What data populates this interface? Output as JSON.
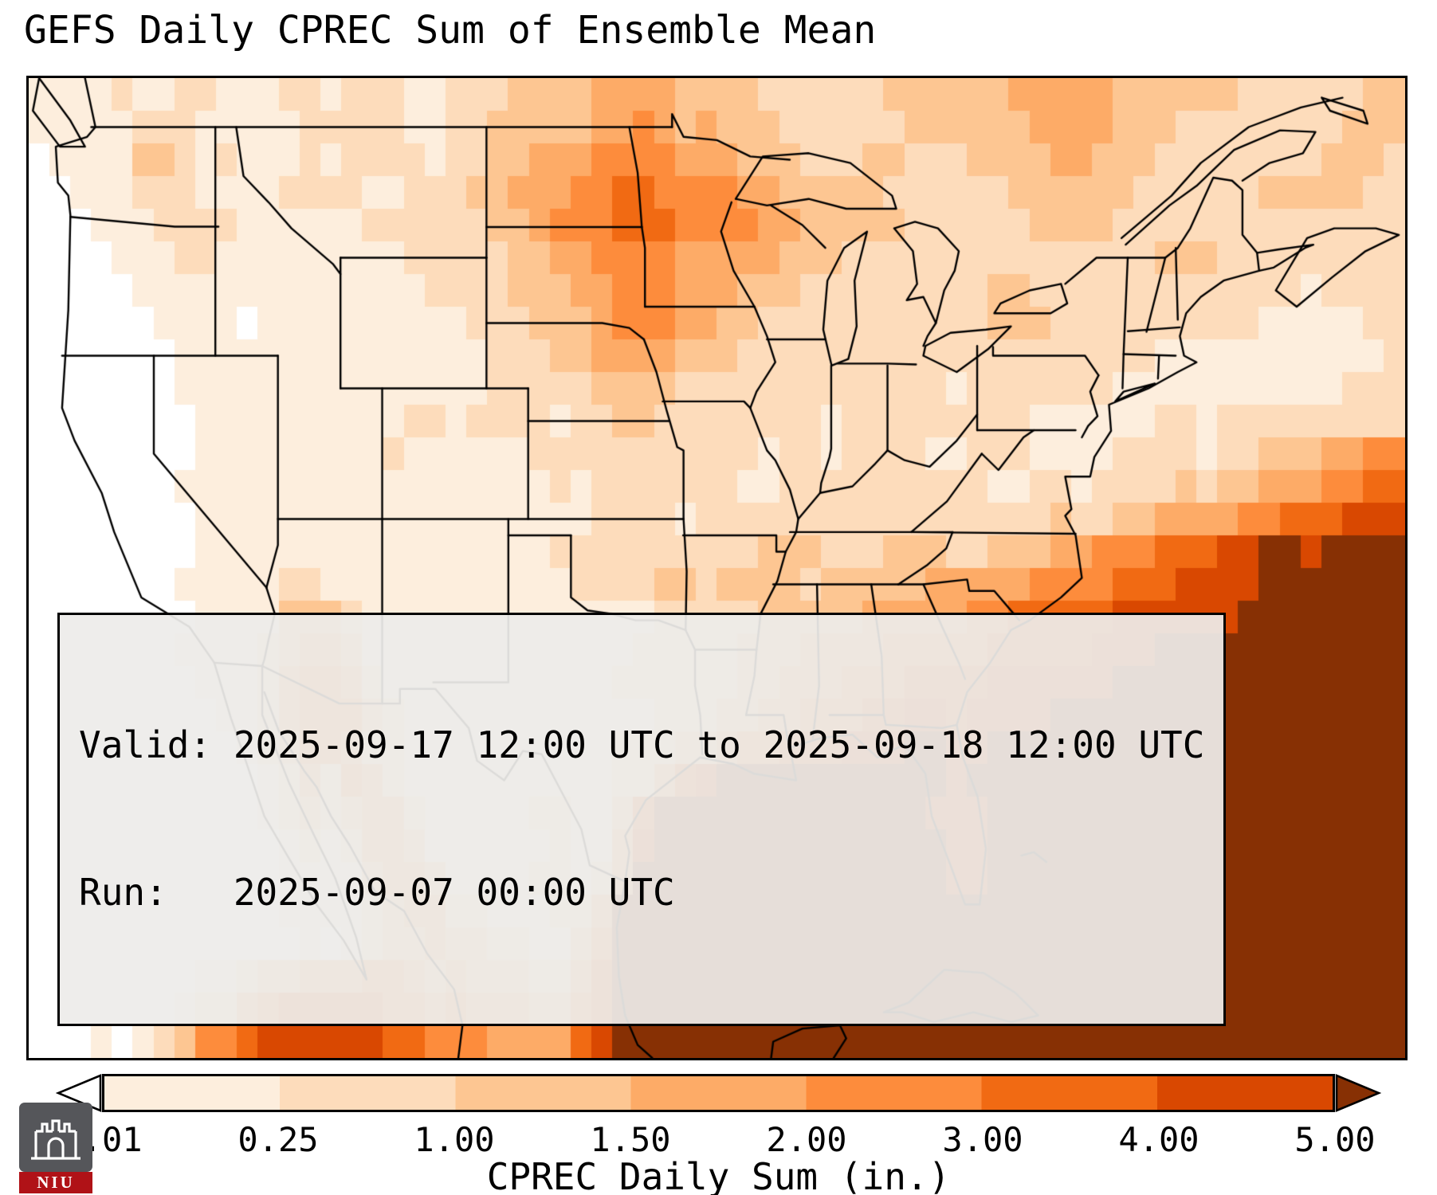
{
  "title": "GEFS Daily CPREC Sum of Ensemble Mean",
  "annotation_box": {
    "line1": "Valid: 2025-09-17 12:00 UTC to 2025-09-18 12:00 UTC",
    "line2": "Run:   2025-09-07 00:00 UTC"
  },
  "colorbar": {
    "label": "CPREC Daily Sum (in.)",
    "ticks": [
      "0.01",
      "0.25",
      "1.00",
      "1.50",
      "2.00",
      "3.00",
      "4.00",
      "5.00"
    ],
    "segment_colors": [
      "#fdeedd",
      "#fddcbb",
      "#fdc692",
      "#fdab67",
      "#fd8c3c",
      "#f16a13",
      "#d94801"
    ],
    "under_color": "#ffffff",
    "over_color": "#873004"
  },
  "logo": {
    "text": "NIU",
    "bar_color": "#b01217",
    "bg_color": "#55565a"
  },
  "chart_data": {
    "type": "heatmap",
    "title": "GEFS Daily CPREC Sum of Ensemble Mean",
    "colorbar_label": "CPREC Daily Sum (in.)",
    "valid_period": "2025-09-17 12:00 UTC to 2025-09-18 12:00 UTC",
    "run_time": "2025-09-07 00:00 UTC",
    "level_boundaries_in": [
      0.01,
      0.25,
      1.0,
      1.5,
      2.0,
      3.0,
      4.0,
      5.0
    ],
    "level_colors": [
      "#ffffff",
      "#fdeedd",
      "#fddcbb",
      "#fdc692",
      "#fdab67",
      "#fd8c3c",
      "#f16a13",
      "#d94801",
      "#873004"
    ],
    "grid_encoding": "each digit 0-8 indexes level_colors; 66 columns span lon_range west to east, 30 rows span lat top to bottom",
    "lon_range": [
      -126,
      -60
    ],
    "lat_range": [
      20.5,
      50.5
    ],
    "grid": [
      [
        "1111",
        "21122",
        "11122",
        "122211",
        "222333",
        "344443",
        "333222",
        "222333",
        "333444",
        "443333",
        "33222",
        "22233"
      ],
      [
        "1111",
        "12221",
        "11112",
        "222211",
        "223333",
        "344543",
        "433322",
        "222233",
        "333344",
        "443332",
        "22222",
        "22333"
      ],
      [
        "0111",
        "13321",
        "21112",
        "122221",
        "223344",
        "455554",
        "443332",
        "223322",
        "233334",
        "433322",
        "22222",
        "23332"
      ],
      [
        "0011",
        "12221",
        "11122",
        "221122",
        "233444",
        "556655",
        "554433",
        "333222",
        "222333",
        "333222",
        "22233",
        "33322"
      ],
      [
        "0001",
        "11222",
        "21111",
        "112222",
        "223345",
        "556665",
        "555443",
        "333322",
        "222233",
        "332222",
        "22222",
        "22222"
      ],
      [
        "0000",
        "11122",
        "11111",
        "111122",
        "222334",
        "455554",
        "444433",
        "322222",
        "222222",
        "222233",
        "32222",
        "22222"
      ],
      [
        "0000",
        "01111",
        "11111",
        "111112",
        "222333",
        "445554",
        "443332",
        "222222",
        "223322",
        "222222",
        "22222",
        "12222"
      ],
      [
        "0000",
        "00111",
        "10111",
        "111111",
        "122233",
        "345554",
        "433222",
        "222222",
        "223332",
        "222222",
        "22211",
        "11122"
      ],
      [
        "0000",
        "00011",
        "11111",
        "111111",
        "112223",
        "344443",
        "332222",
        "222222",
        "222222",
        "222211",
        "11111",
        "11112"
      ],
      [
        "0000",
        "00011",
        "11111",
        "111111",
        "112222",
        "233332",
        "222222",
        "222222",
        "122222",
        "221111",
        "11111",
        "11222"
      ],
      [
        "0000",
        "00001",
        "11111",
        "111122",
        "122221",
        "223322",
        "222222",
        "122222",
        "222211",
        "111122",
        "12222",
        "22222"
      ],
      [
        "0000",
        "00001",
        "11111",
        "111211",
        "111122",
        "222222",
        "222122",
        "122221",
        "122211",
        "112222",
        "12233",
        "34455"
      ],
      [
        "0000",
        "00011",
        "11111",
        "111111",
        "111112",
        "122222",
        "221122",
        "222222",
        "221122",
        "122223",
        "23344",
        "45566"
      ],
      [
        "0000",
        "00001",
        "11111",
        "111111",
        "111111",
        "122221",
        "222222",
        "222222",
        "222223",
        "223344",
        "44556",
        "66777"
      ],
      [
        "0000",
        "00001",
        "11111",
        "111111",
        "111112",
        "222222",
        "222333",
        "222333",
        "223334",
        "455566",
        "67788",
        "78888"
      ],
      [
        "0000",
        "00011",
        "11122",
        "111111",
        "111111",
        "222233",
        "233332",
        "333334",
        "444455",
        "556667",
        "77788",
        "88888"
      ],
      [
        "0000",
        "00001",
        "11133",
        "321111",
        "111111",
        "111122",
        "222333",
        "334444",
        "455666",
        "667777",
        "77888",
        "88888"
      ],
      [
        "0000",
        "00011",
        "11234",
        "431111",
        "111111",
        "111222",
        "223334",
        "444555",
        "556666",
        "677788",
        "88888",
        "88888"
      ],
      [
        "0000",
        "00001",
        "11245",
        "542111",
        "111111",
        "112222",
        "223344",
        "455566",
        "667777",
        "778888",
        "88888",
        "88888"
      ],
      [
        "0000",
        "00000",
        "11245",
        "553211",
        "111111",
        "111122",
        "233445",
        "556677",
        "677778",
        "888888",
        "88888",
        "88888"
      ],
      [
        "0000",
        "00000",
        "01235",
        "542211",
        "111111",
        "112223",
        "345566",
        "677788",
        "778888",
        "888888",
        "88888",
        "88888"
      ],
      [
        "0000",
        "00000",
        "00124",
        "254211",
        "111111",
        "112246",
        "788888",
        "888888",
        "788888",
        "888888",
        "88888",
        "88888"
      ],
      [
        "0000",
        "00000",
        "00123",
        "234421",
        "111122",
        "113688",
        "888888",
        "888887",
        "778888",
        "888888",
        "88888",
        "88888"
      ],
      [
        "0000",
        "00000",
        "00012",
        "124431",
        "111112",
        "114788",
        "888888",
        "888888",
        "778888",
        "888888",
        "88888",
        "88888"
      ],
      [
        "0000",
        "00000",
        "00011",
        "113443",
        "111122",
        "124888",
        "888888",
        "888888",
        "778888",
        "888888",
        "88888",
        "88888"
      ],
      [
        "0000",
        "00000",
        "00011",
        "112344",
        "221112",
        "248888",
        "888888",
        "888888",
        "888888",
        "888888",
        "88888",
        "88888"
      ],
      [
        "0000",
        "00000",
        "00001",
        "012334",
        "332211",
        "358888",
        "888888",
        "888888",
        "888888",
        "888888",
        "88888",
        "88888"
      ],
      [
        "0000",
        "00001",
        "12334",
        "445543",
        "433322",
        "468888",
        "888888",
        "888888",
        "888888",
        "888888",
        "88888",
        "88888"
      ],
      [
        "0000",
        "00012",
        "24566",
        "666554",
        "544433",
        "568888",
        "888888",
        "888888",
        "888888",
        "888888",
        "88888",
        "88888"
      ],
      [
        "0001",
        "01235",
        "56777",
        "777665",
        "554444",
        "678888",
        "888888",
        "888888",
        "888888",
        "888888",
        "88888",
        "88888"
      ]
    ]
  }
}
